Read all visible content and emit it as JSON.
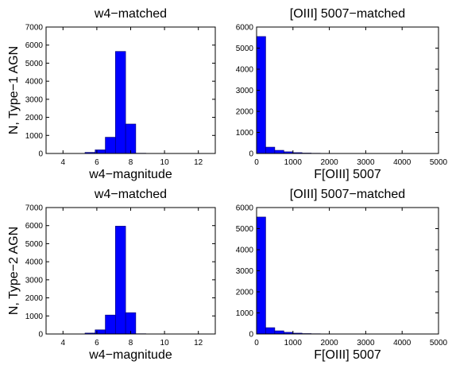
{
  "chart_data": [
    {
      "type": "bar",
      "title": "w4−matched",
      "xlabel": "w4−magnitude",
      "ylabel": "N, Type−1 AGN",
      "xlim": [
        3,
        13
      ],
      "ylim": [
        0,
        7000
      ],
      "xticks": [
        "4",
        "6",
        "8",
        "10",
        "12"
      ],
      "yticks": [
        "0",
        "1000",
        "2000",
        "3000",
        "4000",
        "5000",
        "6000",
        "7000"
      ],
      "bin_edges": [
        3.5,
        4.1,
        4.7,
        5.3,
        5.9,
        6.5,
        7.1,
        7.7,
        8.3,
        8.9,
        9.5,
        10.1,
        10.7,
        11.3,
        11.9,
        12.5
      ],
      "values": [
        0,
        0,
        5,
        60,
        200,
        900,
        5650,
        1630,
        15,
        3,
        0,
        0,
        0,
        0,
        0
      ],
      "bar_color": "#0000ff",
      "grid": false,
      "legend": "none"
    },
    {
      "type": "bar",
      "title": "[OIII] 5007−matched",
      "xlabel": "",
      "ylabel": "",
      "xlim": [
        0,
        5000
      ],
      "ylim": [
        0,
        6000
      ],
      "xticks": [
        "0",
        "1000",
        "2000",
        "3000",
        "4000",
        "5000"
      ],
      "yticks": [
        "0",
        "1000",
        "2000",
        "3000",
        "4000",
        "5000",
        "6000"
      ],
      "bin_edges": [
        0,
        250,
        500,
        750,
        1000,
        1250,
        1500,
        1750,
        2000,
        2250,
        2500,
        2750,
        3000,
        3250,
        3500,
        3750,
        4000,
        4250,
        4500,
        4750,
        5000
      ],
      "values": [
        5550,
        300,
        150,
        80,
        40,
        20,
        12,
        8,
        5,
        3,
        2,
        1,
        1,
        0,
        0,
        0,
        0,
        0,
        0,
        0
      ],
      "bar_color": "#0000ff",
      "grid": false,
      "legend": "none"
    },
    {
      "type": "bar",
      "title": "w4−matched",
      "xlabel": "w4−magnitude",
      "ylabel": "N, Type−2 AGN",
      "xlim": [
        3,
        13
      ],
      "ylim": [
        0,
        7000
      ],
      "xticks": [
        "4",
        "6",
        "8",
        "10",
        "12"
      ],
      "yticks": [
        "0",
        "1000",
        "2000",
        "3000",
        "4000",
        "5000",
        "6000",
        "7000"
      ],
      "bin_edges": [
        3.5,
        4.1,
        4.7,
        5.3,
        5.9,
        6.5,
        7.1,
        7.7,
        8.3,
        8.9,
        9.5,
        10.1,
        10.7,
        11.3,
        11.9,
        12.5
      ],
      "values": [
        0,
        0,
        5,
        50,
        230,
        1050,
        5970,
        1180,
        15,
        3,
        0,
        0,
        0,
        0,
        0
      ],
      "bar_color": "#0000ff",
      "grid": false,
      "legend": "none"
    },
    {
      "type": "bar",
      "title": "[OIII] 5007−matched",
      "xlabel": "F[OIII] 5007",
      "ylabel": "",
      "xlim": [
        0,
        5000
      ],
      "ylim": [
        0,
        6000
      ],
      "xticks": [
        "0",
        "1000",
        "2000",
        "3000",
        "4000",
        "5000"
      ],
      "yticks": [
        "0",
        "1000",
        "2000",
        "3000",
        "4000",
        "5000",
        "6000"
      ],
      "bin_edges": [
        0,
        250,
        500,
        750,
        1000,
        1250,
        1500,
        1750,
        2000,
        2250,
        2500,
        2750,
        3000,
        3250,
        3500,
        3750,
        4000,
        4250,
        4500,
        4750,
        5000
      ],
      "values": [
        5550,
        300,
        150,
        80,
        40,
        20,
        12,
        8,
        5,
        3,
        2,
        1,
        1,
        0,
        0,
        0,
        0,
        0,
        0,
        0
      ],
      "bar_color": "#0000ff",
      "grid": false,
      "legend": "none"
    }
  ],
  "figure_labels": {
    "top_right_xlabel": "F[OIII] 5007"
  }
}
